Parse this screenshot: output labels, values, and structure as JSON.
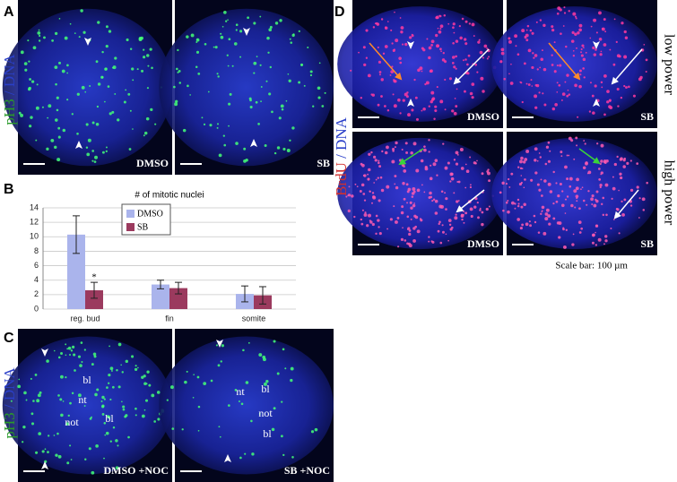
{
  "panels": {
    "A": {
      "letter": "A",
      "stain": [
        "pH3",
        "/",
        "DNA"
      ],
      "images": [
        "DMSO",
        "SB"
      ]
    },
    "B": {
      "letter": "B"
    },
    "C": {
      "letter": "C",
      "stain": [
        "pH3",
        "/",
        "DNA"
      ],
      "images": [
        "DMSO +NOC",
        "SB +NOC"
      ],
      "labels_left": [
        "bl",
        "nt",
        "not",
        "bl"
      ],
      "labels_right": [
        "nt",
        "bl",
        "not",
        "bl"
      ]
    },
    "D": {
      "letter": "D",
      "stain": [
        "BrdU",
        "/",
        "DNA"
      ],
      "rows": [
        "low power",
        "high power"
      ],
      "images": [
        "DMSO",
        "SB",
        "DMSO",
        "SB"
      ],
      "scale_bar": "Scale bar: 100 µm"
    }
  },
  "chart_data": {
    "type": "bar",
    "title": "# of mitotic nuclei",
    "categories": [
      "reg. bud",
      "fin",
      "somite"
    ],
    "series": [
      {
        "name": "DMSO",
        "color": "#aab4ec",
        "values": [
          10.3,
          3.4,
          2.1
        ],
        "errors": [
          2.6,
          0.6,
          1.1
        ]
      },
      {
        "name": "SB",
        "color": "#9b3a5e",
        "values": [
          2.6,
          2.9,
          1.9
        ],
        "errors": [
          1.1,
          0.8,
          1.2
        ]
      }
    ],
    "annotation": "*",
    "ylim": [
      0,
      14
    ],
    "yticks": [
      0,
      2,
      4,
      6,
      8,
      10,
      12,
      14
    ],
    "grid": true
  }
}
